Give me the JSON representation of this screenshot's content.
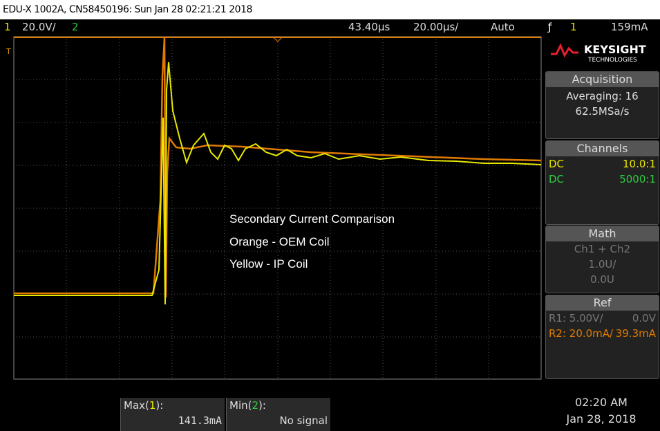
{
  "header": {
    "title": "EDU-X 1002A, CN58450196: Sun Jan 28 02:21:21 2018"
  },
  "toolbar": {
    "ch1": "1",
    "ch1_scale": "20.0V/",
    "ch2": "2",
    "delay": "43.40µs",
    "timebase": "20.00µs/",
    "mode": "Auto",
    "trigger_source": "1",
    "trigger_level": "159mA"
  },
  "logo": {
    "name": "KEYSIGHT",
    "sub": "TECHNOLOGIES"
  },
  "acquisition": {
    "title": "Acquisition",
    "mode": "Averaging: 16",
    "rate": "62.5MSa/s"
  },
  "channels": {
    "title": "Channels",
    "rows": [
      [
        "DC",
        "10.0:1"
      ],
      [
        "DC",
        "5000:1"
      ]
    ]
  },
  "math": {
    "title": "Math",
    "function": "Ch1 + Ch2",
    "scale": "1.0U/",
    "offset": "0.0U"
  },
  "ref": {
    "title": "Ref",
    "rows": [
      [
        "R1:  5.00V/",
        "0.0V"
      ],
      [
        "R2: 20.0mA/",
        "39.3mA"
      ]
    ]
  },
  "annotations": [
    "Secondary Current Comparison",
    "Orange - OEM Coil",
    "Yellow - IP Coil"
  ],
  "measurements": [
    {
      "label": "Max(",
      "channel": "1",
      "close": "):",
      "value": "141.3mA"
    },
    {
      "label": "Min(",
      "channel": "2",
      "close": "):",
      "value": "No signal"
    }
  ],
  "clock": {
    "time": "02:20 AM",
    "date": "Jan 28, 2018"
  }
}
